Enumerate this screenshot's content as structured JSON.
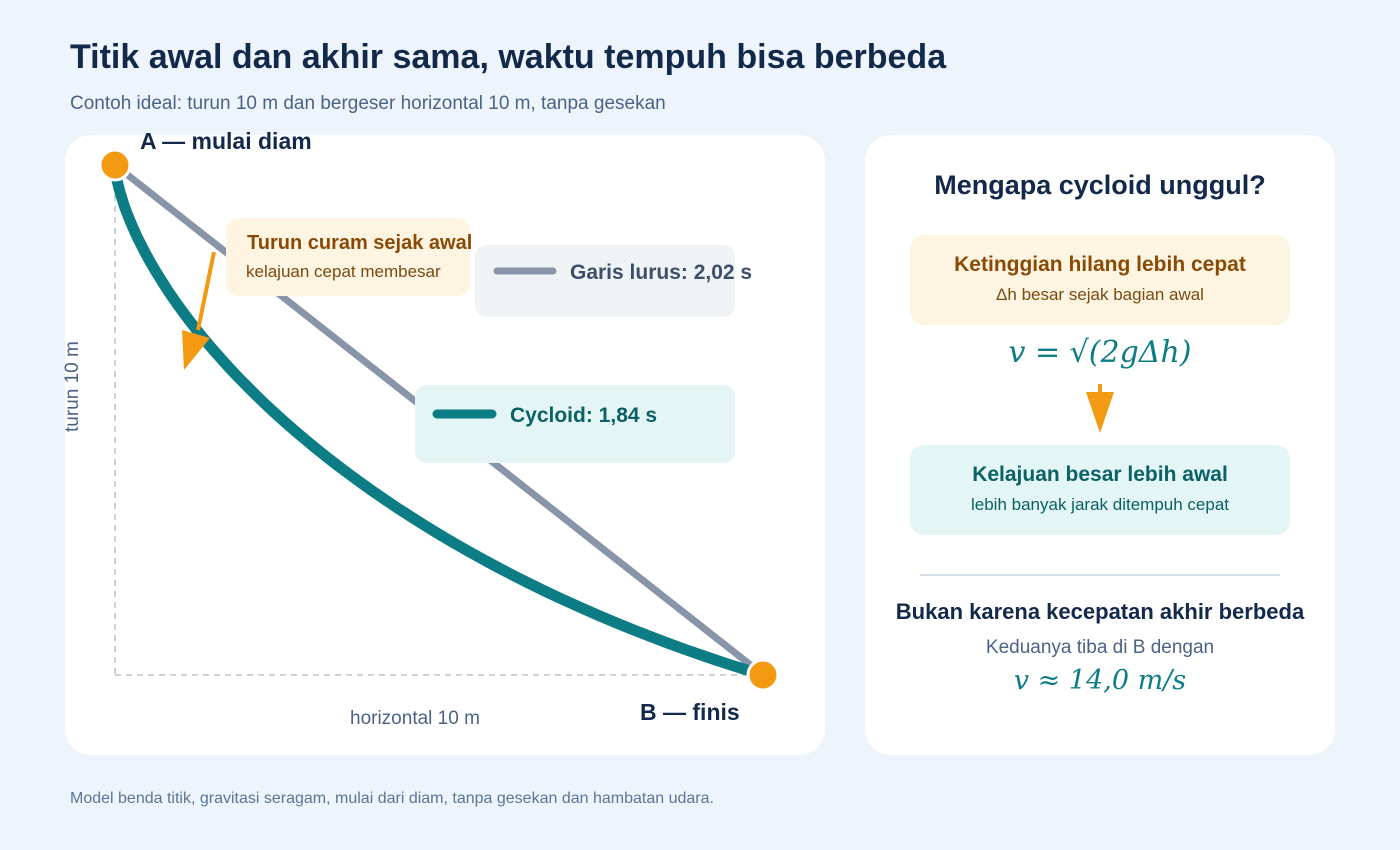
{
  "header": {
    "title": "Titik awal dan akhir sama, waktu tempuh bisa berbeda",
    "subtitle": "Contoh ideal: turun 10 m dan bergeser horizontal 10 m, tanpa gesekan"
  },
  "diagram": {
    "point_a_label": "A — mulai diam",
    "point_b_label": "B — finis",
    "axis_vertical_label": "turun 10 m",
    "axis_horizontal_label": "horizontal 10 m",
    "callout_title": "Turun curam sejak awal",
    "callout_sub": "kelajuan cepat membesar",
    "legend_line": "Garis lurus: 2,02 s",
    "legend_cycloid": "Cycloid: 1,84 s",
    "colors": {
      "cycloid": "#0c7c85",
      "line": "#8895a8",
      "point": "#f39a12",
      "arrow": "#f39a12"
    }
  },
  "side_panel": {
    "title": "Mengapa cycloid unggul?",
    "box1_title": "Ketinggian hilang lebih cepat",
    "box1_sub": "Δh besar sejak bagian awal",
    "formula": "v = √(2gΔh)",
    "box2_title": "Kelajuan besar lebih awal",
    "box2_sub": "lebih banyak jarak ditempuh cepat",
    "end_title": "Bukan karena kecepatan akhir berbeda",
    "end_sub": "Keduanya tiba di B dengan",
    "end_formula": "v ≈ 14,0 m/s"
  },
  "footer": {
    "note": "Model benda titik, gravitasi seragam, mulai dari diam, tanpa gesekan dan hambatan udara."
  }
}
